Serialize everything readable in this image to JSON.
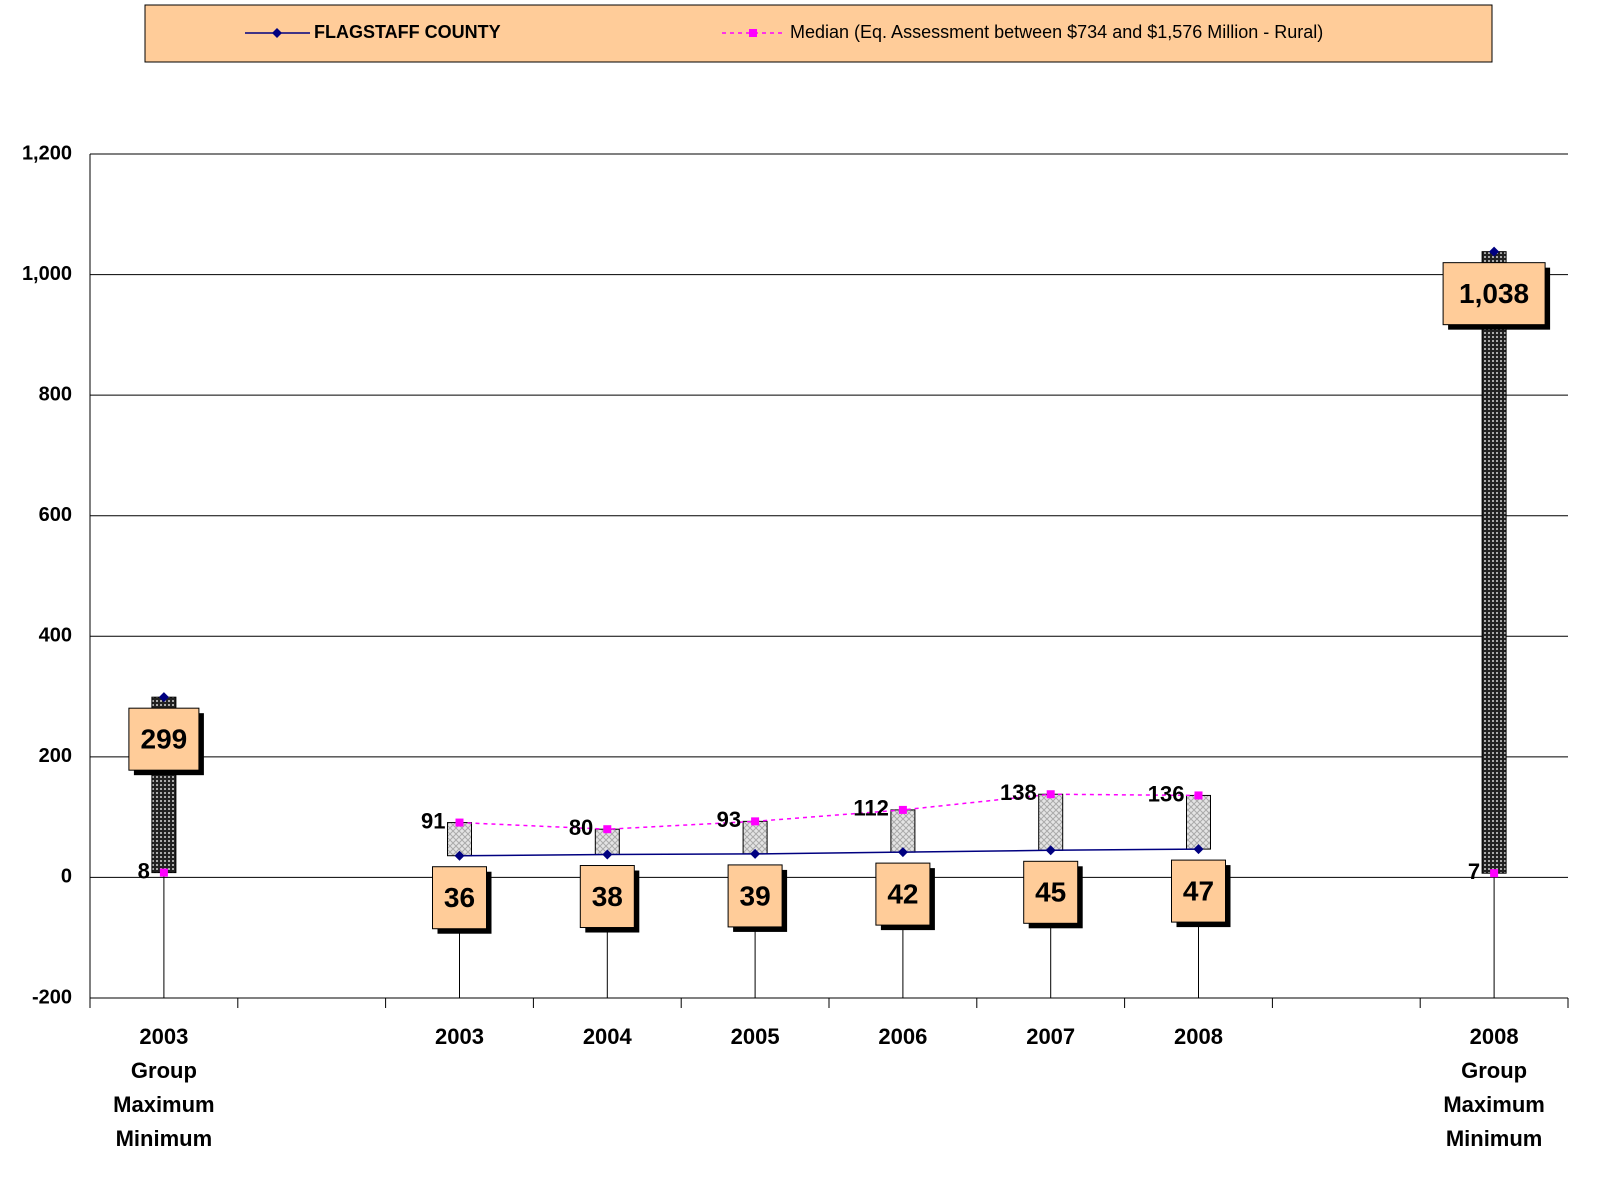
{
  "chart_data": {
    "type": "line",
    "categories": [
      "2003 Group Maximum Minimum",
      null,
      "2003",
      "2004",
      "2005",
      "2006",
      "2007",
      "2008",
      null,
      "2008 Group Maximum Minimum"
    ],
    "series": [
      {
        "name": "FLAGSTAFF COUNTY",
        "color": "#000080",
        "values": [
          299,
          null,
          36,
          38,
          39,
          42,
          45,
          47,
          null,
          1038
        ]
      },
      {
        "name": "Median (Eq. Assessment between $734 and $1,576 Million - Rural)",
        "color": "#ff00ff",
        "values": [
          8,
          null,
          91,
          80,
          93,
          112,
          138,
          136,
          null,
          7
        ]
      }
    ],
    "ylim": [
      -200,
      1200
    ],
    "yticks": [
      -200,
      0,
      200,
      400,
      600,
      800,
      {
        "value": 1000,
        "label": "1,000"
      },
      {
        "value": 1200,
        "label": "1,200"
      }
    ],
    "value_labels": [
      "299",
      null,
      "36",
      "38",
      "39",
      "42",
      "45",
      "47",
      null,
      "1,038"
    ],
    "grid": true,
    "legend": "top"
  }
}
